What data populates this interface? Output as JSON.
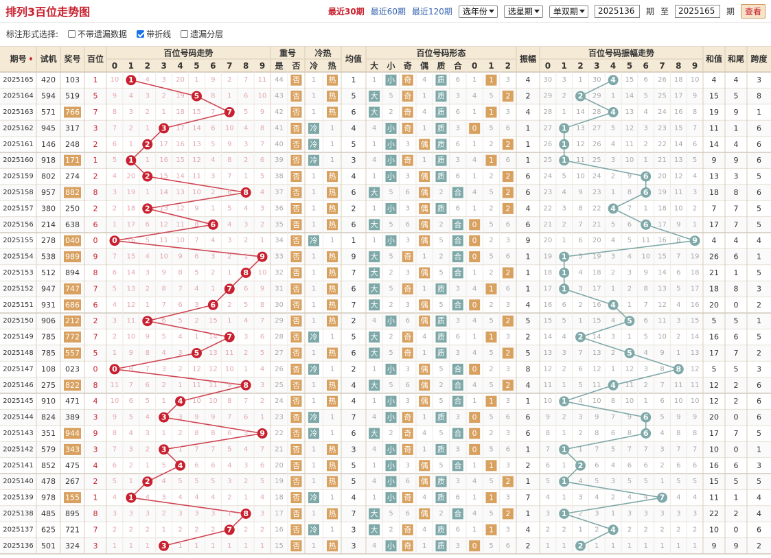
{
  "header": {
    "title": "排列3百位走势图",
    "links": [
      "最近30期",
      "最近60期",
      "最近120期"
    ],
    "active": 0,
    "selects": [
      "选年份",
      "选星期",
      "单双期"
    ],
    "from": "2025136",
    "to": "2025165",
    "period_label": "期",
    "to_label": "至",
    "submit": "查看"
  },
  "options": {
    "label": "标注形式选择:",
    "items": [
      {
        "label": "不带遗漏数据",
        "checked": false
      },
      {
        "label": "带折线",
        "checked": true
      },
      {
        "label": "遗漏分层",
        "checked": false
      }
    ]
  },
  "columns": {
    "qihao": "期号",
    "shiji": "试机",
    "jianghao": "奖号",
    "baiwei": "百位",
    "trend": "百位号码走势",
    "chonghao": "重号",
    "lengre": "冷热",
    "junzhi": "均值",
    "xingtai": "百位号码形态",
    "zhenfu": "振幅",
    "zfzs": "百位号码振幅走势",
    "hezhi": "和值",
    "hewei": "和尾",
    "kuadu": "跨度",
    "chong_sub": [
      "是",
      "否"
    ],
    "lengre_sub": [
      "冷",
      "热"
    ],
    "xingtai_sub": [
      "大",
      "小",
      "奇",
      "偶",
      "质",
      "合",
      "0",
      "1",
      "2"
    ],
    "digits": [
      "0",
      "1",
      "2",
      "3",
      "4",
      "5",
      "6",
      "7",
      "8",
      "9"
    ]
  },
  "tags": {
    "no": "否",
    "cold": "冷",
    "hot": "热",
    "big": "大",
    "small": "小",
    "odd": "奇",
    "even": "偶",
    "prime": "质",
    "comp": "合",
    "r0": "0",
    "r1": "1",
    "r2": "2",
    "yes": "是"
  },
  "colors": {
    "red": "#c8202e",
    "teal": "#7ea8a8",
    "orange": "#d9a15f",
    "header_bg": "#f5ead6",
    "line_red": "#cf4452",
    "line_teal": "#7fa8a8"
  },
  "rows": [
    {
      "id": "2025165",
      "t": "420",
      "n": "103",
      "b": 1,
      "hz": "4",
      "hw": "4",
      "kd": "3"
    },
    {
      "id": "2025164",
      "t": "594",
      "n": "519",
      "b": 5,
      "hz": "15",
      "hw": "5",
      "kd": "8"
    },
    {
      "id": "2025163",
      "t": "571",
      "n": "766",
      "b": 7,
      "hz": "19",
      "hw": "9",
      "kd": "1"
    },
    {
      "id": "2025162",
      "t": "945",
      "n": "317",
      "b": 3,
      "hz": "11",
      "hw": "1",
      "kd": "6"
    },
    {
      "id": "2025161",
      "t": "146",
      "n": "248",
      "b": 2,
      "hz": "14",
      "hw": "4",
      "kd": "6"
    },
    {
      "id": "2025160",
      "t": "918",
      "n": "171",
      "b": 1,
      "hz": "9",
      "hw": "9",
      "kd": "6"
    },
    {
      "id": "2025159",
      "t": "802",
      "n": "274",
      "b": 2,
      "hz": "13",
      "hw": "3",
      "kd": "5"
    },
    {
      "id": "2025158",
      "t": "957",
      "n": "882",
      "b": 8,
      "hz": "18",
      "hw": "8",
      "kd": "6"
    },
    {
      "id": "2025157",
      "t": "380",
      "n": "250",
      "b": 2,
      "hz": "7",
      "hw": "7",
      "kd": "5"
    },
    {
      "id": "2025156",
      "t": "214",
      "n": "638",
      "b": 6,
      "hz": "17",
      "hw": "7",
      "kd": "5"
    },
    {
      "id": "2025155",
      "t": "278",
      "n": "040",
      "b": 0,
      "hz": "4",
      "hw": "4",
      "kd": "4"
    },
    {
      "id": "2025154",
      "t": "538",
      "n": "989",
      "b": 9,
      "hz": "26",
      "hw": "6",
      "kd": "1"
    },
    {
      "id": "2025153",
      "t": "512",
      "n": "894",
      "b": 8,
      "hz": "21",
      "hw": "1",
      "kd": "5"
    },
    {
      "id": "2025152",
      "t": "947",
      "n": "747",
      "b": 7,
      "hz": "18",
      "hw": "8",
      "kd": "3"
    },
    {
      "id": "2025151",
      "t": "931",
      "n": "686",
      "b": 6,
      "hz": "20",
      "hw": "0",
      "kd": "2"
    },
    {
      "id": "2025150",
      "t": "906",
      "n": "212",
      "b": 2,
      "hz": "5",
      "hw": "5",
      "kd": "1"
    },
    {
      "id": "2025149",
      "t": "785",
      "n": "772",
      "b": 7,
      "hz": "16",
      "hw": "6",
      "kd": "5"
    },
    {
      "id": "2025148",
      "t": "785",
      "n": "557",
      "b": 5,
      "hz": "17",
      "hw": "7",
      "kd": "2"
    },
    {
      "id": "2025147",
      "t": "108",
      "n": "023",
      "b": 0,
      "hz": "5",
      "hw": "5",
      "kd": "3"
    },
    {
      "id": "2025146",
      "t": "275",
      "n": "822",
      "b": 8,
      "hz": "12",
      "hw": "2",
      "kd": "6"
    },
    {
      "id": "2025145",
      "t": "910",
      "n": "471",
      "b": 4,
      "hz": "12",
      "hw": "2",
      "kd": "6"
    },
    {
      "id": "2025144",
      "t": "824",
      "n": "389",
      "b": 3,
      "hz": "20",
      "hw": "0",
      "kd": "6"
    },
    {
      "id": "2025143",
      "t": "351",
      "n": "944",
      "b": 9,
      "hz": "17",
      "hw": "7",
      "kd": "5"
    },
    {
      "id": "2025142",
      "t": "579",
      "n": "343",
      "b": 3,
      "hz": "10",
      "hw": "0",
      "kd": "1"
    },
    {
      "id": "2025141",
      "t": "852",
      "n": "475",
      "b": 4,
      "hz": "16",
      "hw": "6",
      "kd": "3"
    },
    {
      "id": "2025140",
      "t": "478",
      "n": "267",
      "b": 2,
      "hz": "15",
      "hw": "5",
      "kd": "5"
    },
    {
      "id": "2025139",
      "t": "978",
      "n": "155",
      "b": 1,
      "hz": "11",
      "hw": "1",
      "kd": "4"
    },
    {
      "id": "2025138",
      "t": "485",
      "n": "895",
      "b": 8,
      "hz": "22",
      "hw": "2",
      "kd": "4"
    },
    {
      "id": "2025137",
      "t": "625",
      "n": "721",
      "b": 7,
      "hz": "10",
      "hw": "0",
      "kd": "6"
    },
    {
      "id": "2025136",
      "t": "501",
      "n": "324",
      "b": 3,
      "hz": "9",
      "hw": "9",
      "kd": "2"
    }
  ]
}
